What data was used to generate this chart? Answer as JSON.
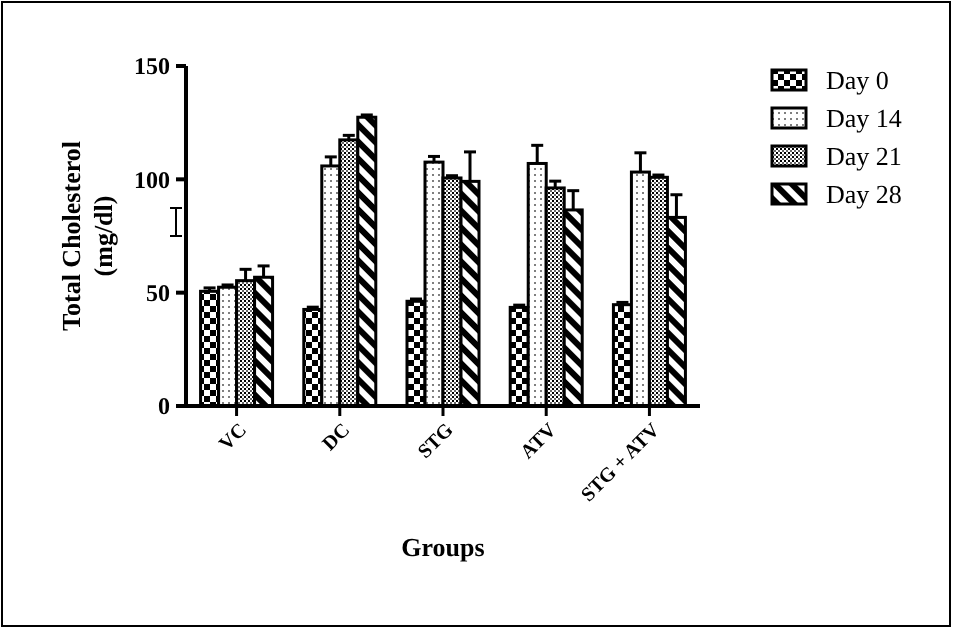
{
  "chart_data": {
    "type": "bar",
    "xlabel": "Groups",
    "ylabel": "Total Cholesterol (mg/dl)",
    "categories": [
      "VC",
      "DC",
      "STG",
      "ATV",
      "STG + ATV"
    ],
    "series": [
      {
        "name": "Day 0",
        "color": "#000000",
        "values": [
          50.6,
          42.6,
          46.2,
          43.5,
          44.7
        ],
        "errors": [
          1.5,
          1,
          1,
          1,
          1
        ]
      },
      {
        "name": "Day 14",
        "color": "#000000",
        "values": [
          52.4,
          105.9,
          107.6,
          107,
          103.2
        ],
        "errors": [
          1,
          4,
          2.5,
          8,
          8.5
        ]
      },
      {
        "name": "Day 21",
        "color": "#000000",
        "values": [
          55.3,
          117.4,
          100.6,
          96.2,
          100.9
        ],
        "errors": [
          5,
          2,
          1,
          3,
          1
        ]
      },
      {
        "name": "Day 28",
        "color": "#000000",
        "values": [
          56.8,
          127.4,
          99.1,
          86.5,
          83.2
        ],
        "errors": [
          5,
          1,
          13,
          8.5,
          10
        ]
      }
    ],
    "ylim": [
      0,
      150
    ],
    "yticks": [
      0,
      50,
      100,
      150
    ],
    "grid": false,
    "legend": "top right"
  }
}
